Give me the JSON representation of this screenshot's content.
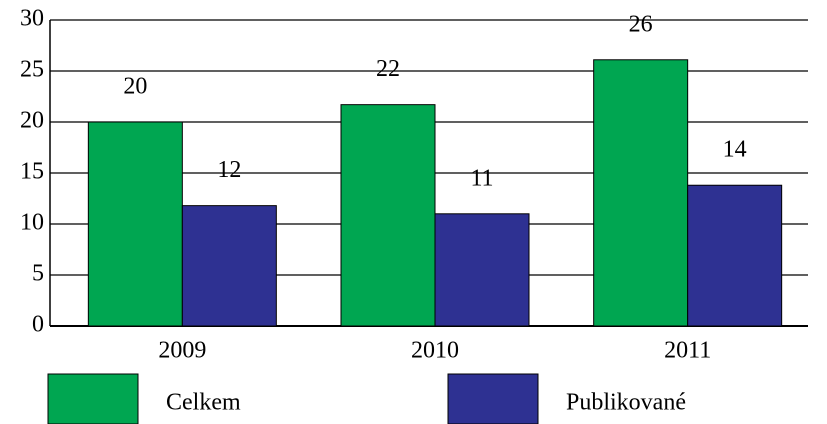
{
  "chart_data": {
    "type": "bar",
    "categories": [
      "2009",
      "2010",
      "2011"
    ],
    "series": [
      {
        "name": "Celkem",
        "color": "#00a651",
        "values": [
          20,
          21.7,
          26.1
        ],
        "value_labels": [
          "20",
          "22",
          "26"
        ]
      },
      {
        "name": "Publikované",
        "color": "#2e3192",
        "values": [
          11.8,
          11,
          13.8
        ],
        "value_labels": [
          "12",
          "11",
          "14"
        ]
      }
    ],
    "ylim": [
      0,
      30
    ],
    "yticks": [
      0,
      5,
      10,
      15,
      20,
      25,
      30
    ],
    "grid": true
  }
}
